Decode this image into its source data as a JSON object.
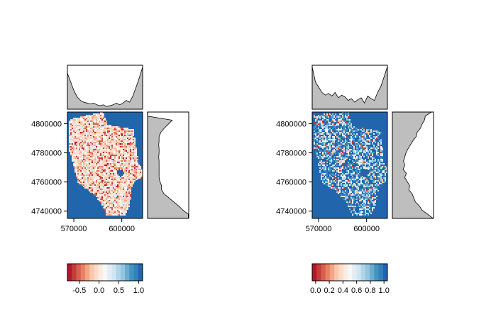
{
  "chart_data": [
    {
      "type": "heatmap",
      "panel": "left",
      "x_ticks": [
        570000,
        600000
      ],
      "x_tick_labels": [
        "570000",
        "600000"
      ],
      "y_ticks": [
        4740000,
        4760000,
        4780000,
        4800000
      ],
      "y_tick_labels": [
        "4740000",
        "4760000",
        "4780000",
        "4800000"
      ],
      "xlim": [
        566000,
        613000
      ],
      "ylim": [
        4735000,
        4808000
      ],
      "top_marginal": [
        0.82,
        0.62,
        0.42,
        0.28,
        0.2,
        0.16,
        0.14,
        0.12,
        0.14,
        0.1,
        0.08,
        0.1,
        0.06,
        0.08,
        0.1,
        0.14,
        0.1,
        0.14,
        0.2,
        0.16,
        0.3,
        0.5,
        0.72,
        0.96
      ],
      "right_marginal": [
        0.01,
        0.0,
        0.6,
        0.5,
        0.4,
        0.32,
        0.28,
        0.28,
        0.27,
        0.28,
        0.28,
        0.27,
        0.28,
        0.28,
        0.28,
        0.28,
        0.28,
        0.3,
        0.34,
        0.34,
        0.4,
        0.52,
        0.64,
        0.76,
        0.86,
        0.99,
        0.99
      ],
      "colorbar": {
        "min": -0.8,
        "max": 1.1,
        "ticks": [
          -0.5,
          0.0,
          0.5,
          1.0
        ],
        "tick_labels": [
          "-0.5",
          "0.0",
          "0.5",
          "1.0"
        ]
      }
    },
    {
      "type": "heatmap",
      "panel": "right",
      "x_ticks": [
        570000,
        600000
      ],
      "x_tick_labels": [
        "570000",
        "600000"
      ],
      "y_ticks": [
        4740000,
        4760000,
        4780000,
        4800000
      ],
      "y_tick_labels": [
        "4740000",
        "4760000",
        "4780000",
        "4800000"
      ],
      "xlim": [
        566000,
        613000
      ],
      "ylim": [
        4735000,
        4808000
      ],
      "top_marginal": [
        0.96,
        0.62,
        0.5,
        0.38,
        0.32,
        0.36,
        0.3,
        0.38,
        0.26,
        0.32,
        0.28,
        0.2,
        0.24,
        0.16,
        0.22,
        0.26,
        0.14,
        0.3,
        0.24,
        0.2,
        0.38,
        0.52,
        0.74,
        0.97
      ],
      "right_marginal": [
        0.95,
        0.8,
        0.78,
        0.72,
        0.68,
        0.6,
        0.58,
        0.5,
        0.44,
        0.38,
        0.33,
        0.3,
        0.27,
        0.3,
        0.26,
        0.34,
        0.3,
        0.36,
        0.42,
        0.4,
        0.48,
        0.52,
        0.56,
        0.66,
        0.72,
        0.86,
        0.99
      ],
      "colorbar": {
        "min": -0.05,
        "max": 1.05,
        "ticks": [
          0.0,
          0.2,
          0.4,
          0.6,
          0.8,
          1.0
        ],
        "tick_labels": [
          "0.0",
          "0.2",
          "0.4",
          "0.6",
          "0.8",
          "1.0"
        ]
      }
    }
  ],
  "colors": {
    "background": "#2166ac",
    "marginal_fill": "#bebebe",
    "palette": [
      "#b2182b",
      "#c43c3c",
      "#d6604d",
      "#e58368",
      "#f4a582",
      "#f8c8ae",
      "#fddbc7",
      "#f8ece4",
      "#f7f7f7",
      "#e2edf4",
      "#d1e5f0",
      "#b0d4e8",
      "#92c5de",
      "#6aacd0",
      "#4393c3",
      "#3580b9",
      "#2166ac"
    ]
  }
}
